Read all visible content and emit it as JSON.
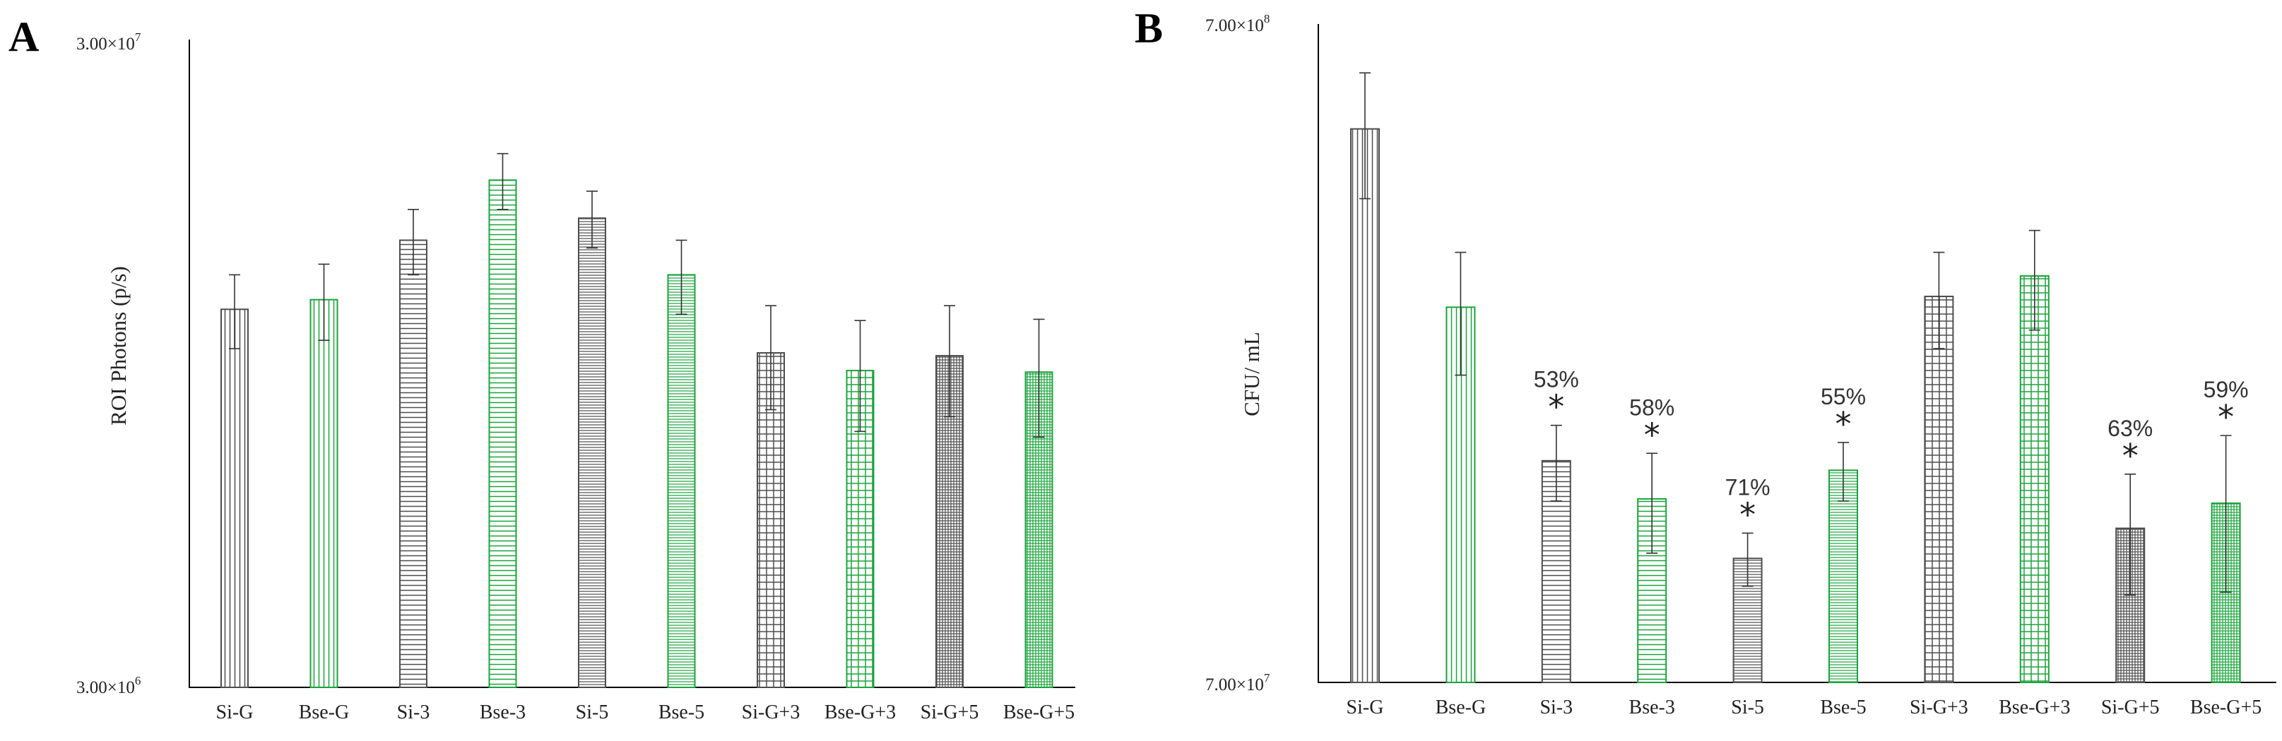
{
  "chart_data": [
    {
      "panel_label": "A",
      "type": "bar",
      "scale": "log",
      "ylabel": "ROI Photons (p/s)",
      "ytick_labels": [
        "3.00×10",
        "3.00×10"
      ],
      "ytick_exponents": [
        "7",
        "6"
      ],
      "ylim": [
        3000000,
        30000000
      ],
      "categories": [
        "Si-G",
        "Bse-G",
        "Si-3",
        "Bse-3",
        "Si-5",
        "Bse-5",
        "Si-G+3",
        "Bse-G+3",
        "Si-G+5",
        "Bse-G+5"
      ],
      "values": [
        11500000,
        11900000,
        14700000,
        18200000,
        15900000,
        13000000,
        9850000,
        9250000,
        9750000,
        9200000
      ],
      "errors": [
        1500000,
        1600000,
        1700000,
        1800000,
        1600000,
        1700000,
        1800000,
        1800000,
        1900000,
        1900000
      ],
      "colors": [
        "#4d4d4d",
        "#1aa33c",
        "#4d4d4d",
        "#1aa33c",
        "#4d4d4d",
        "#1aa33c",
        "#4d4d4d",
        "#1aa33c",
        "#4d4d4d",
        "#1aa33c"
      ],
      "patterns": [
        "vert",
        "vert",
        "horiz",
        "horiz",
        "horiz-dense",
        "horiz-dense",
        "grid",
        "grid",
        "grid-dense",
        "grid-dense"
      ]
    },
    {
      "panel_label": "B",
      "type": "bar",
      "scale": "log",
      "ylabel": "CFU/ mL",
      "ytick_labels": [
        "7.00×10",
        "7.00×10"
      ],
      "ytick_exponents": [
        "8",
        "7"
      ],
      "ylim": [
        70000000,
        700000000
      ],
      "categories": [
        "Si-G",
        "Bse-G",
        "Si-3",
        "Bse-3",
        "Si-5",
        "Bse-5",
        "Si-G+3",
        "Bse-G+3",
        "Si-G+5",
        "Bse-G+5"
      ],
      "values": [
        485000000,
        260000000,
        152000000,
        133000000,
        108000000,
        147000000,
        270000000,
        290000000,
        120000000,
        131000000
      ],
      "errors": [
        105000000,
        55000000,
        20000000,
        23000000,
        10000000,
        15000000,
        45000000,
        50000000,
        25000000,
        35000000
      ],
      "annotations": [
        "",
        "",
        "53%",
        "58%",
        "71%",
        "55%",
        "",
        "",
        "63%",
        "59%"
      ],
      "significance_mark": "*",
      "colors": [
        "#4d4d4d",
        "#1aa33c",
        "#4d4d4d",
        "#1aa33c",
        "#4d4d4d",
        "#1aa33c",
        "#4d4d4d",
        "#1aa33c",
        "#4d4d4d",
        "#1aa33c"
      ],
      "patterns": [
        "vert",
        "vert",
        "horiz",
        "horiz",
        "horiz-dense",
        "horiz-dense",
        "grid",
        "grid",
        "grid-dense",
        "grid-dense"
      ]
    }
  ]
}
